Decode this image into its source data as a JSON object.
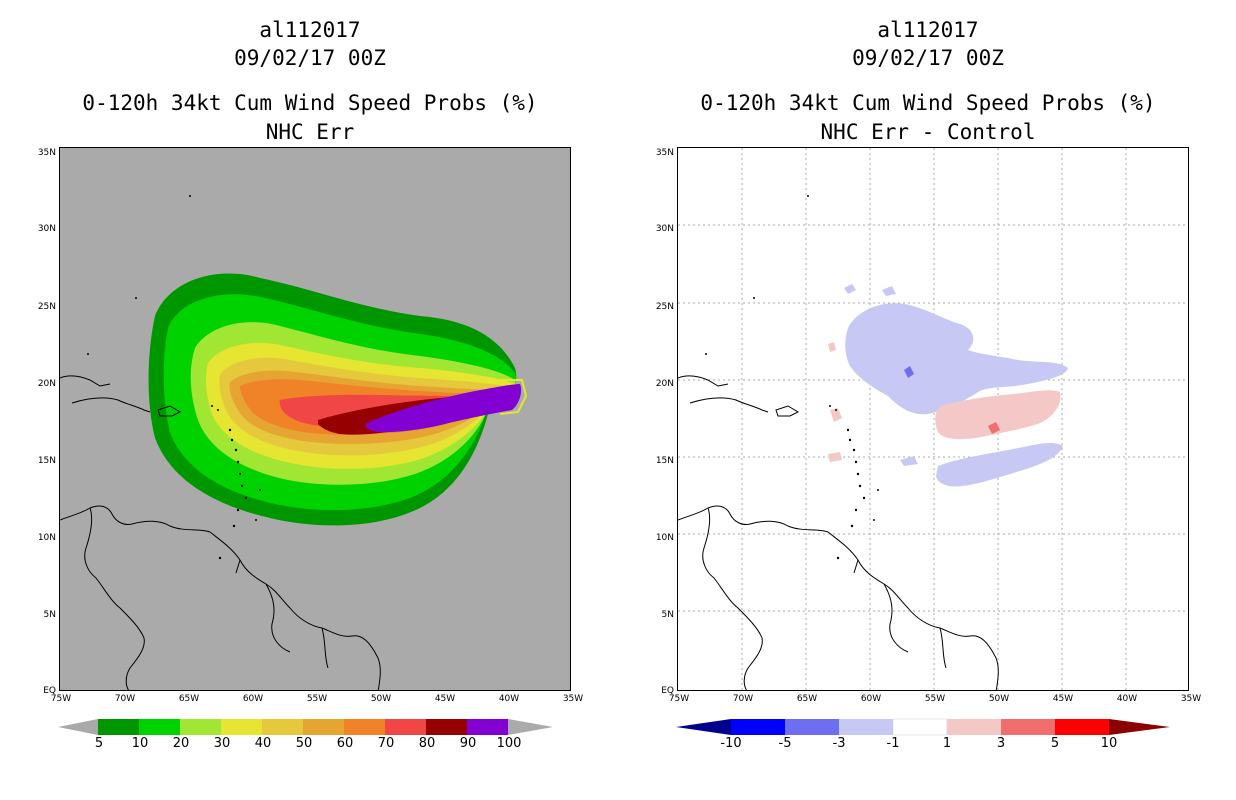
{
  "panels": [
    {
      "id": "left",
      "title_line1": "al112017",
      "title_line2": "09/02/17 00Z",
      "title_line3": "0-120h 34kt Cum Wind Speed Probs (%)",
      "title_line4": "NHC Err",
      "background": "#aaaaaa",
      "colorbar_labels": [
        "5",
        "10",
        "20",
        "30",
        "40",
        "50",
        "60",
        "70",
        "80",
        "90",
        "100"
      ],
      "colorbar_colors": [
        "#aaaaaa",
        "#009600",
        "#00d200",
        "#a0e632",
        "#e6e632",
        "#e6c83c",
        "#e6a532",
        "#f08228",
        "#f04646",
        "#960000",
        "#8200d2",
        "#aaaaaa"
      ]
    },
    {
      "id": "right",
      "title_line1": "al112017",
      "title_line2": "09/02/17 00Z",
      "title_line3": "0-120h 34kt Cum Wind Speed Probs (%)",
      "title_line4": "NHC Err - Control",
      "background": "#ffffff",
      "colorbar_labels": [
        "-10",
        "-5",
        "-3",
        "-1",
        "1",
        "3",
        "5",
        "10"
      ],
      "colorbar_colors": [
        "#00008c",
        "#0000ff",
        "#6e6ef0",
        "#c8c8f5",
        "#ffffff",
        "#f5c8c8",
        "#f06e6e",
        "#ff0000",
        "#8c0000"
      ]
    }
  ],
  "lat_labels": [
    "35N",
    "30N",
    "25N",
    "20N",
    "15N",
    "10N",
    "5N",
    "EQ"
  ],
  "lon_labels": [
    "75W",
    "70W",
    "65W",
    "60W",
    "55W",
    "50W",
    "45W",
    "40W",
    "35W"
  ]
}
